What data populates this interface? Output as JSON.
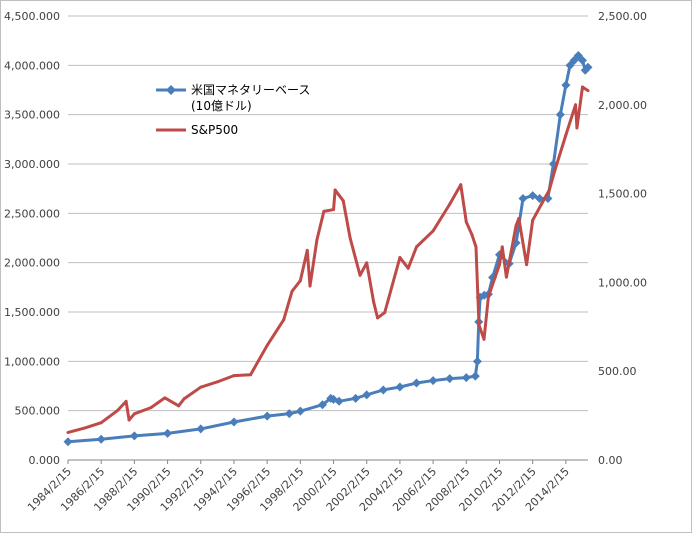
{
  "chart_data": {
    "type": "line",
    "title": "",
    "xlabel": "",
    "ylabel": "",
    "x_ticks": [
      "1984/2/15",
      "1986/2/15",
      "1988/2/15",
      "1990/2/15",
      "1992/2/15",
      "1994/2/15",
      "1996/2/15",
      "1998/2/15",
      "2000/2/15",
      "2002/2/15",
      "2004/2/15",
      "2006/2/15",
      "2008/2/15",
      "2010/2/15",
      "2012/2/15",
      "2014/2/15"
    ],
    "x_range": [
      "1984/2/15",
      "2015/6/15"
    ],
    "y_left": {
      "range": [
        0,
        4500
      ],
      "ticks": [
        "0.000",
        "500.000",
        "1,000.000",
        "1,500.000",
        "2,000.000",
        "2,500.000",
        "3,000.000",
        "3,500.000",
        "4,000.000",
        "4,500.000"
      ]
    },
    "y_right": {
      "range": [
        0,
        2500
      ],
      "ticks": [
        "0.00",
        "500.00",
        "1,000.00",
        "1,500.00",
        "2,000.00",
        "2,500.00"
      ]
    },
    "grid": "horizontal",
    "legend_position": "upper-left-inside",
    "series": [
      {
        "name": "米国マネタリーベース",
        "name_line2": "(10億ドル)",
        "axis": "left",
        "color": "#4a7ebb",
        "marker": "diamond",
        "points": [
          [
            "1984/2/15",
            185
          ],
          [
            "1986/2/15",
            210
          ],
          [
            "1988/2/15",
            245
          ],
          [
            "1990/2/15",
            270
          ],
          [
            "1992/2/15",
            315
          ],
          [
            "1994/2/15",
            385
          ],
          [
            "1996/2/15",
            445
          ],
          [
            "1997/6/15",
            470
          ],
          [
            "1998/2/15",
            495
          ],
          [
            "1999/6/15",
            560
          ],
          [
            "1999/12/15",
            625
          ],
          [
            "2000/2/15",
            615
          ],
          [
            "2000/6/15",
            595
          ],
          [
            "2001/6/15",
            625
          ],
          [
            "2002/2/15",
            660
          ],
          [
            "2003/2/15",
            710
          ],
          [
            "2004/2/15",
            740
          ],
          [
            "2005/2/15",
            780
          ],
          [
            "2006/2/15",
            805
          ],
          [
            "2007/2/15",
            825
          ],
          [
            "2008/2/15",
            835
          ],
          [
            "2008/9/1",
            850
          ],
          [
            "2008/10/15",
            1000
          ],
          [
            "2008/11/15",
            1400
          ],
          [
            "2008/12/15",
            1650
          ],
          [
            "2009/3/15",
            1670
          ],
          [
            "2009/6/15",
            1680
          ],
          [
            "2009/9/15",
            1850
          ],
          [
            "2010/2/15",
            2080
          ],
          [
            "2010/9/15",
            1990
          ],
          [
            "2011/2/15",
            2200
          ],
          [
            "2011/7/15",
            2650
          ],
          [
            "2012/2/15",
            2680
          ],
          [
            "2012/7/15",
            2650
          ],
          [
            "2013/1/15",
            2650
          ],
          [
            "2013/5/15",
            3000
          ],
          [
            "2013/10/15",
            3500
          ],
          [
            "2014/2/15",
            3800
          ],
          [
            "2014/5/15",
            4000
          ],
          [
            "2014/8/15",
            4050
          ],
          [
            "2014/11/15",
            4100
          ],
          [
            "2015/2/15",
            4050
          ],
          [
            "2015/4/15",
            3950
          ],
          [
            "2015/6/15",
            3980
          ]
        ]
      },
      {
        "name": "S&P500",
        "axis": "right",
        "color": "#be4b48",
        "points": [
          [
            "1984/2/15",
            155
          ],
          [
            "1985/2/15",
            180
          ],
          [
            "1986/2/15",
            210
          ],
          [
            "1987/2/15",
            280
          ],
          [
            "1987/8/15",
            330
          ],
          [
            "1987/10/20",
            225
          ],
          [
            "1988/2/15",
            260
          ],
          [
            "1989/2/15",
            295
          ],
          [
            "1989/12/15",
            350
          ],
          [
            "1990/10/15",
            305
          ],
          [
            "1991/2/15",
            345
          ],
          [
            "1992/2/15",
            410
          ],
          [
            "1993/2/15",
            440
          ],
          [
            "1994/2/15",
            475
          ],
          [
            "1995/2/15",
            480
          ],
          [
            "1996/2/15",
            645
          ],
          [
            "1997/2/15",
            790
          ],
          [
            "1997/8/15",
            950
          ],
          [
            "1998/2/15",
            1010
          ],
          [
            "1998/7/15",
            1180
          ],
          [
            "1998/9/15",
            980
          ],
          [
            "1999/2/15",
            1240
          ],
          [
            "1999/7/15",
            1400
          ],
          [
            "2000/2/15",
            1410
          ],
          [
            "2000/3/20",
            1520
          ],
          [
            "2000/9/15",
            1460
          ],
          [
            "2001/2/15",
            1250
          ],
          [
            "2001/9/20",
            1040
          ],
          [
            "2002/2/15",
            1110
          ],
          [
            "2002/7/15",
            890
          ],
          [
            "2002/10/10",
            800
          ],
          [
            "2003/3/15",
            830
          ],
          [
            "2004/2/15",
            1140
          ],
          [
            "2004/8/15",
            1080
          ],
          [
            "2005/2/15",
            1200
          ],
          [
            "2006/2/15",
            1290
          ],
          [
            "2007/2/15",
            1440
          ],
          [
            "2007/10/15",
            1550
          ],
          [
            "2008/2/15",
            1340
          ],
          [
            "2008/6/15",
            1270
          ],
          [
            "2008/9/15",
            1200
          ],
          [
            "2008/11/20",
            760
          ],
          [
            "2009/3/9",
            680
          ],
          [
            "2009/6/15",
            920
          ],
          [
            "2010/2/15",
            1100
          ],
          [
            "2010/4/15",
            1200
          ],
          [
            "2010/7/15",
            1030
          ],
          [
            "2011/2/15",
            1320
          ],
          [
            "2011/4/15",
            1360
          ],
          [
            "2011/10/3",
            1100
          ],
          [
            "2012/2/15",
            1350
          ],
          [
            "2012/9/15",
            1450
          ],
          [
            "2013/2/15",
            1520
          ],
          [
            "2013/6/15",
            1630
          ],
          [
            "2014/2/15",
            1830
          ],
          [
            "2014/9/15",
            2000
          ],
          [
            "2014/10/15",
            1870
          ],
          [
            "2015/2/15",
            2100
          ],
          [
            "2015/6/15",
            2080
          ]
        ]
      }
    ]
  }
}
